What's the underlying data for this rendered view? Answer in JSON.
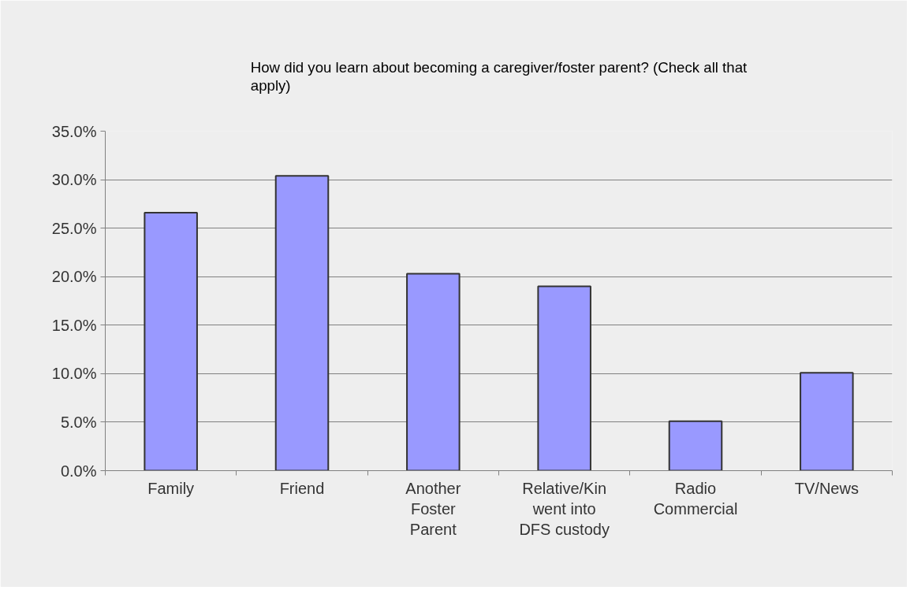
{
  "chart_data": {
    "type": "bar",
    "title": "How did you learn about becoming a caregiver/foster parent? (Check all that apply)",
    "categories": [
      "Family",
      "Friend",
      "Another Foster Parent",
      "Relative/Kin went into DFS custody",
      "Radio Commercial",
      "TV/News"
    ],
    "values": [
      26.6,
      30.4,
      20.3,
      19.0,
      5.1,
      10.1
    ],
    "color": "#9999ff",
    "ylim": [
      0,
      35
    ],
    "yticks": [
      {
        "value": 0,
        "label": "0.0%"
      },
      {
        "value": 5,
        "label": "5.0%"
      },
      {
        "value": 10,
        "label": "10.0%"
      },
      {
        "value": 15,
        "label": "15.0%"
      },
      {
        "value": 20,
        "label": "20.0%"
      },
      {
        "value": 25,
        "label": "25.0%"
      },
      {
        "value": 30,
        "label": "30.0%"
      },
      {
        "value": 35,
        "label": "35.0%"
      }
    ],
    "grid": "y"
  }
}
